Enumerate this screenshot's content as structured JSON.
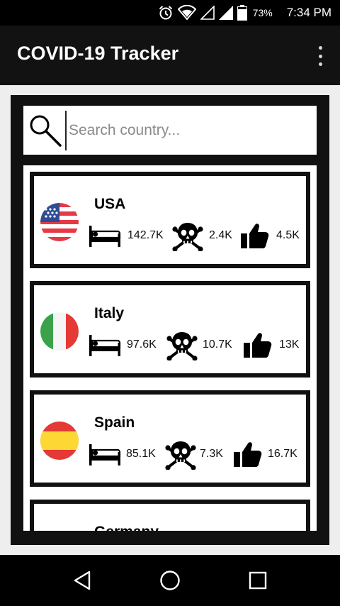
{
  "status_bar": {
    "battery_percent": "73%",
    "time": "7:34 PM",
    "icons": [
      "alarm-icon",
      "wifi-icon",
      "signal-empty-icon",
      "signal-icon",
      "battery-icon"
    ]
  },
  "app_bar": {
    "title": "COVID-19 Tracker",
    "menu_icon": "overflow-menu-icon"
  },
  "search": {
    "placeholder": "Search country...",
    "value": "",
    "icon": "search-icon"
  },
  "countries": [
    {
      "name": "USA",
      "flag": "usa-flag-icon",
      "cases": "142.7K",
      "deaths": "2.4K",
      "recovered": "4.5K"
    },
    {
      "name": "Italy",
      "flag": "italy-flag-icon",
      "cases": "97.6K",
      "deaths": "10.7K",
      "recovered": "13K"
    },
    {
      "name": "Spain",
      "flag": "spain-flag-icon",
      "cases": "85.1K",
      "deaths": "7.3K",
      "recovered": "16.7K"
    },
    {
      "name": "Germany",
      "flag": "germany-flag-icon"
    }
  ],
  "stat_icons": {
    "cases": "bed-icon",
    "deaths": "skull-crossbones-icon",
    "recovered": "thumbs-up-icon"
  },
  "nav_bar": {
    "buttons": [
      "back-icon",
      "home-icon",
      "recents-icon"
    ]
  },
  "colors": {
    "app_bar": "#121212",
    "frame": "#111111",
    "card_border": "#111111",
    "placeholder": "#8a8a8a"
  }
}
